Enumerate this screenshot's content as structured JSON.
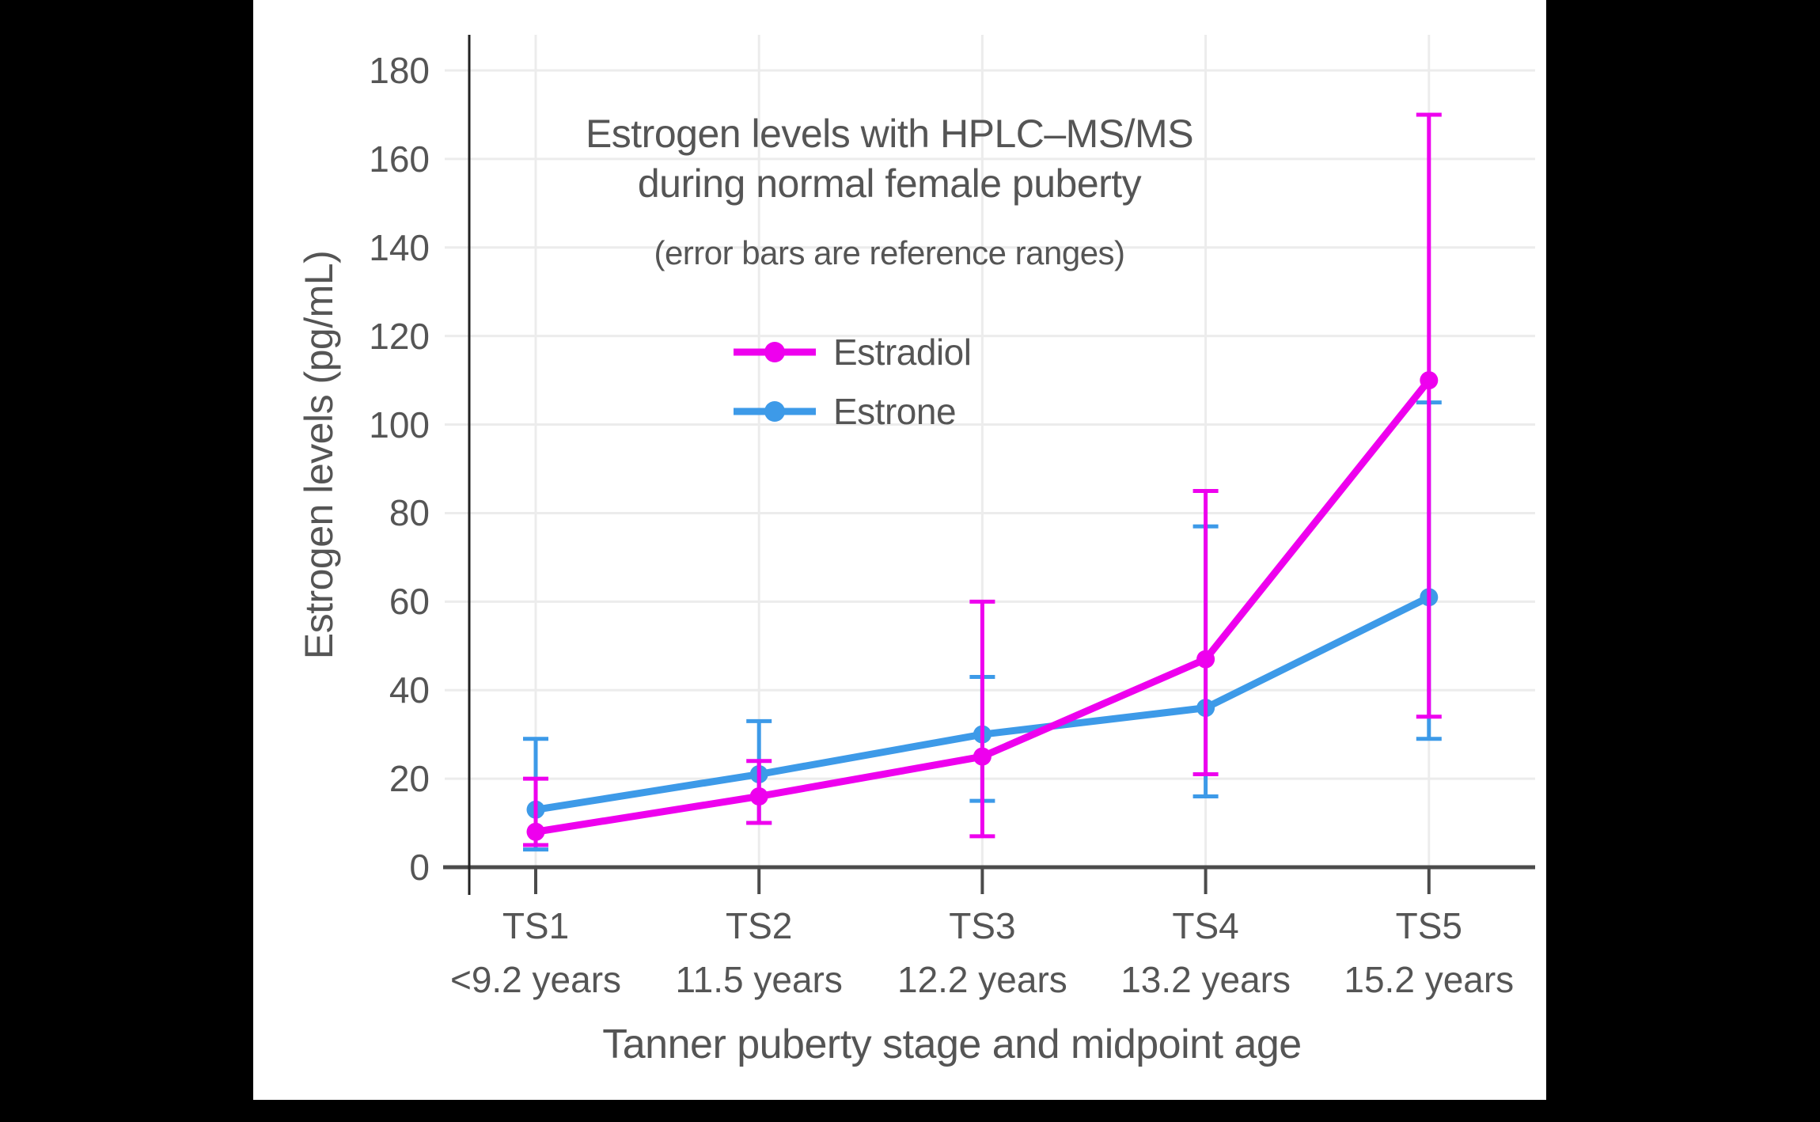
{
  "chart_data": {
    "type": "line",
    "title_lines": [
      "Estrogen levels with HPLC–MS/MS",
      "during normal female puberty"
    ],
    "subtitle": "(error bars are reference ranges)",
    "xlabel": "Tanner puberty stage and midpoint age",
    "ylabel": "Estrogen levels (pg/mL)",
    "categories": [
      "TS1",
      "TS2",
      "TS3",
      "TS4",
      "TS5"
    ],
    "category_ages": [
      "<9.2 years",
      "11.5 years",
      "12.2 years",
      "13.2 years",
      "15.2 years"
    ],
    "yticks": [
      0,
      20,
      40,
      60,
      80,
      100,
      120,
      140,
      160,
      180
    ],
    "ylim": [
      0,
      188
    ],
    "grid": true,
    "legend_position": "upper-left-inside",
    "error_bar_meaning": "reference ranges",
    "series": [
      {
        "name": "Estradiol",
        "color": "#EE00EE",
        "values": [
          8,
          16,
          25,
          47,
          110
        ],
        "error_low": [
          5,
          10,
          7,
          21,
          34
        ],
        "error_high": [
          20,
          24,
          60,
          85,
          170
        ]
      },
      {
        "name": "Estrone",
        "color": "#3D9AE8",
        "values": [
          13,
          21,
          30,
          36,
          61
        ],
        "error_low": [
          4,
          10,
          15,
          16,
          29
        ],
        "error_high": [
          29,
          33,
          43,
          77,
          105
        ]
      }
    ],
    "colors": {
      "background": "#FFFFFF",
      "letterbox": "#000000",
      "gridline": "#ECECEC",
      "x_axis_line": "#4B4B4B",
      "y_axis_line": "#222222",
      "text": "#555555"
    }
  }
}
